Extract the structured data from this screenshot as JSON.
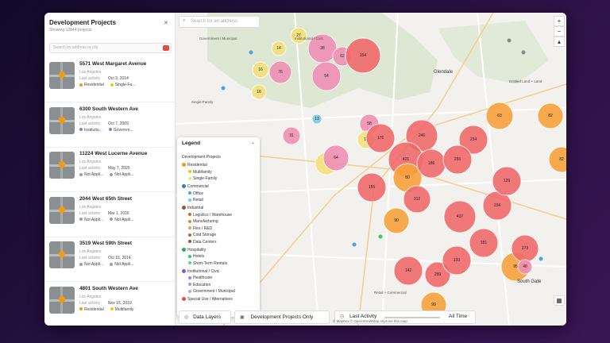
{
  "sidebar": {
    "title": "Development Projects",
    "subtitle": "Showing 12844 projects",
    "close_icon": "close-icon",
    "search_placeholder": "Search by address or city",
    "projects": [
      {
        "address": "5571 West Margaret Avenue",
        "city": "Los Angeles",
        "last_activity_label": "Last activity",
        "last_activity": "Oct 3, 2014",
        "tag1": "Residential",
        "tag2": "Single-Fa...",
        "tag1_color": "#f39c12",
        "tag2_color": "#f1c40f"
      },
      {
        "address": "6300 South Western Ave",
        "city": "Los Angeles",
        "last_activity_label": "Last activity",
        "last_activity": "Oct 7, 2009",
        "tag1": "Institutio...",
        "tag2": "Governm...",
        "tag1_color": "#8e7cc3",
        "tag2_color": "#8e7cc3"
      },
      {
        "address": "11224 West Lucerne Avenue",
        "city": "Los Angeles",
        "last_activity_label": "Last activity",
        "last_activity": "May 7, 2025",
        "tag1": "Not Appli...",
        "tag2": "Not Appli...",
        "tag1_color": "#9e9e9e",
        "tag2_color": "#9e9e9e"
      },
      {
        "address": "2044 West 65th Street",
        "city": "Los Angeles",
        "last_activity_label": "Last activity",
        "last_activity": "Mar 1, 2016",
        "tag1": "Not Appli...",
        "tag2": "Not Appli...",
        "tag1_color": "#9e9e9e",
        "tag2_color": "#9e9e9e"
      },
      {
        "address": "3519 West 59th Street",
        "city": "Los Angeles",
        "last_activity_label": "Last activity",
        "last_activity": "Oct 15, 2014",
        "tag1": "Not Appli...",
        "tag2": "Not Appli...",
        "tag1_color": "#9e9e9e",
        "tag2_color": "#9e9e9e"
      },
      {
        "address": "4801 South Western Ave",
        "city": "Los Angeles",
        "last_activity_label": "Last activity",
        "last_activity": "Nov 15, 2019",
        "tag1": "Residential",
        "tag2": "Multifamily",
        "tag1_color": "#f39c12",
        "tag2_color": "#f1c40f"
      }
    ]
  },
  "map": {
    "search_placeholder": "Search for an address",
    "zoom_in": "+",
    "zoom_out": "−",
    "compass": "▴",
    "labels": [
      {
        "text": "Government / Municipal"
      },
      {
        "text": "Institutional / Civic"
      },
      {
        "text": "Glendale"
      },
      {
        "text": "South Gate"
      },
      {
        "text": "Retail + Commercial"
      },
      {
        "text": "Single-Family"
      },
      {
        "text": "Entitled Land + Land"
      }
    ],
    "attribution": "© Mapbox © OpenStreetMap Improve this map",
    "clusters": [
      {
        "n": "16",
        "color": "#f4e07a"
      },
      {
        "n": "27",
        "color": "#f4e07a"
      },
      {
        "n": "14",
        "color": "#f4e07a"
      },
      {
        "n": "38",
        "color": "#f08fb4"
      },
      {
        "n": "54",
        "color": "#f08fb4"
      },
      {
        "n": "62",
        "color": "#f08fb4"
      },
      {
        "n": "16",
        "color": "#f4e07a"
      },
      {
        "n": "76",
        "color": "#f08fb4"
      },
      {
        "n": "154",
        "color": "#f06a6a"
      },
      {
        "n": "13",
        "color": "#7ec8e3"
      },
      {
        "n": "58",
        "color": "#f08fb4"
      },
      {
        "n": "12",
        "color": "#f4e07a"
      },
      {
        "n": "31",
        "color": "#f08fb4"
      },
      {
        "n": "17",
        "color": "#f4e07a"
      },
      {
        "n": "64",
        "color": "#f08fb4"
      },
      {
        "n": "246",
        "color": "#f06a6a"
      },
      {
        "n": "176",
        "color": "#f06a6a"
      },
      {
        "n": "421",
        "color": "#f06a6a"
      },
      {
        "n": "234",
        "color": "#f06a6a"
      },
      {
        "n": "63",
        "color": "#f7a23b"
      },
      {
        "n": "82",
        "color": "#f7a23b"
      },
      {
        "n": "80",
        "color": "#f7a23b"
      },
      {
        "n": "82",
        "color": "#f7a23b"
      },
      {
        "n": "90",
        "color": "#f7a23b"
      },
      {
        "n": "95",
        "color": "#f7a23b"
      },
      {
        "n": "186",
        "color": "#f06a6a"
      },
      {
        "n": "256",
        "color": "#f06a6a"
      },
      {
        "n": "155",
        "color": "#f06a6a"
      },
      {
        "n": "312",
        "color": "#f06a6a"
      },
      {
        "n": "437",
        "color": "#f06a6a"
      },
      {
        "n": "234",
        "color": "#f06a6a"
      },
      {
        "n": "129",
        "color": "#f06a6a"
      },
      {
        "n": "181",
        "color": "#f06a6a"
      },
      {
        "n": "273",
        "color": "#f06a6a"
      },
      {
        "n": "142",
        "color": "#f06a6a"
      },
      {
        "n": "299",
        "color": "#f06a6a"
      },
      {
        "n": "133",
        "color": "#f06a6a"
      },
      {
        "n": "48",
        "color": "#f08fb4"
      },
      {
        "n": "99",
        "color": "#f7a23b"
      }
    ]
  },
  "legend": {
    "title": "Legend",
    "chevron_icon": "chevron-down-icon",
    "section_title": "Development Projects",
    "groups": [
      {
        "name": "Residential",
        "color": "#f39c12",
        "items": [
          "Multifamily",
          "Single-Family"
        ],
        "item_colors": [
          "#f1c40f",
          "#f7e08a"
        ]
      },
      {
        "name": "Commercial",
        "color": "#2f7dc5",
        "items": [
          "Office",
          "Retail"
        ],
        "item_colors": [
          "#4aa3df",
          "#85c1e9"
        ]
      },
      {
        "name": "Industrial",
        "color": "#a0522d",
        "items": [
          "Logistics / Warehouse",
          "Manufacturing",
          "Flex / R&D",
          "Cold Storage",
          "Data Centers"
        ],
        "item_colors": [
          "#c0703b",
          "#d08a56",
          "#e0a070",
          "#b36a3d",
          "#9b5a34"
        ]
      },
      {
        "name": "Hospitality",
        "color": "#27ae60",
        "items": [
          "Hotels",
          "Short-Term Rentals"
        ],
        "item_colors": [
          "#2ecc71",
          "#58d68d"
        ]
      },
      {
        "name": "Institutional / Civic",
        "color": "#7d5fc2",
        "items": [
          "Healthcare",
          "Education",
          "Government / Municipal"
        ],
        "item_colors": [
          "#9b84d6",
          "#a994dc",
          "#b9a6e3"
        ]
      },
      {
        "name": "Special Use / Alternatives",
        "color": "#e74c3c",
        "items": [],
        "item_colors": []
      }
    ]
  },
  "bottom_bar": {
    "data_layers": "Data Layers",
    "dev_only": "Development Projects Only",
    "last_activity": "Last Activity",
    "time_value": "All Time"
  }
}
